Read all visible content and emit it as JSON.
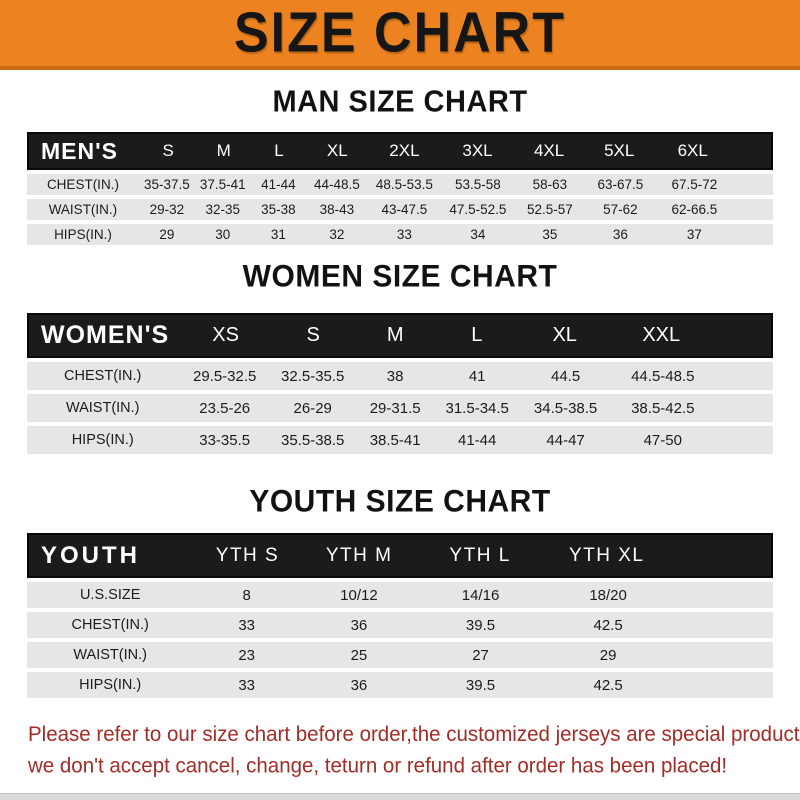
{
  "banner": {
    "title": "SIZE CHART"
  },
  "colors": {
    "banner_bg": "#EC8320",
    "banner_border": "#C96A12",
    "header_bar_bg": "#1B1B1B",
    "row_bg": "#E6E6E6",
    "note_text": "#A32C26"
  },
  "sections": [
    {
      "id": "men",
      "title": "MAN SIZE CHART",
      "header_label": "MEN'S",
      "columns": [
        "S",
        "M",
        "L",
        "XL",
        "2XL",
        "3XL",
        "4XL",
        "5XL",
        "6XL"
      ],
      "rows": [
        {
          "label": "CHEST(IN.)",
          "values": [
            "35-37.5",
            "37.5-41",
            "41-44",
            "44-48.5",
            "48.5-53.5",
            "53.5-58",
            "58-63",
            "63-67.5",
            "67.5-72"
          ]
        },
        {
          "label": "WAIST(IN.)",
          "values": [
            "29-32",
            "32-35",
            "35-38",
            "38-43",
            "43-47.5",
            "47.5-52.5",
            "52.5-57",
            "57-62",
            "62-66.5"
          ]
        },
        {
          "label": "HIPS(IN.)",
          "values": [
            "29",
            "30",
            "31",
            "32",
            "33",
            "34",
            "35",
            "36",
            "37"
          ]
        }
      ]
    },
    {
      "id": "women",
      "title": "WOMEN SIZE CHART",
      "header_label": "WOMEN'S",
      "columns": [
        "XS",
        "S",
        "M",
        "L",
        "XL",
        "XXL"
      ],
      "rows": [
        {
          "label": "CHEST(IN.)",
          "values": [
            "29.5-32.5",
            "32.5-35.5",
            "38",
            "41",
            "44.5",
            "44.5-48.5"
          ]
        },
        {
          "label": "WAIST(IN.)",
          "values": [
            "23.5-26",
            "26-29",
            "29-31.5",
            "31.5-34.5",
            "34.5-38.5",
            "38.5-42.5"
          ]
        },
        {
          "label": "HIPS(IN.)",
          "values": [
            "33-35.5",
            "35.5-38.5",
            "38.5-41",
            "41-44",
            "44-47",
            "47-50"
          ]
        }
      ]
    },
    {
      "id": "youth",
      "title": "YOUTH SIZE CHART",
      "header_label": "YOUTH",
      "columns": [
        "YTH S",
        "YTH M",
        "YTH L",
        "YTH XL"
      ],
      "rows": [
        {
          "label": "U.S.SIZE",
          "values": [
            "8",
            "10/12",
            "14/16",
            "18/20"
          ]
        },
        {
          "label": "CHEST(IN.)",
          "values": [
            "33",
            "36",
            "39.5",
            "42.5"
          ]
        },
        {
          "label": "WAIST(IN.)",
          "values": [
            "23",
            "25",
            "27",
            "29"
          ]
        },
        {
          "label": "HIPS(IN.)",
          "values": [
            "33",
            "36",
            "39.5",
            "42.5"
          ]
        }
      ]
    }
  ],
  "notes": {
    "line1": "Please refer to our size chart before order,the customized jerseys are special products,",
    "line2": "we don't accept cancel, change, teturn or refund after order has been placed!"
  }
}
